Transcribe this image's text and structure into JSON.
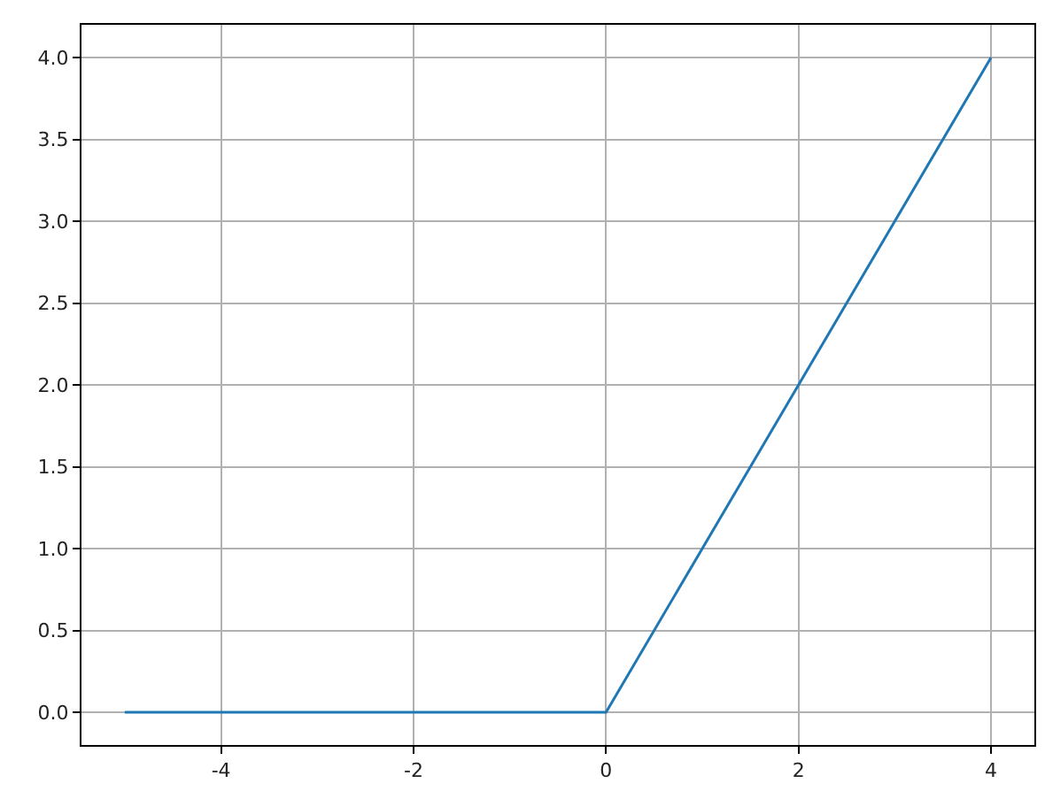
{
  "chart_data": {
    "type": "line",
    "x": [
      -5,
      0,
      4
    ],
    "series": [
      {
        "color": "#1f77b4",
        "values": [
          0,
          0,
          4
        ]
      }
    ],
    "xlim": [
      -5.45,
      4.45
    ],
    "xticks": [
      -4,
      -2,
      0,
      2,
      4
    ],
    "ylim": [
      -0.2,
      4.2
    ],
    "yticks": [
      {
        "value": 0,
        "label": "0.0"
      },
      {
        "value": 0.5,
        "label": "0.5"
      },
      {
        "value": 1,
        "label": "1.0"
      },
      {
        "value": 1.5,
        "label": "1.5"
      },
      {
        "value": 2,
        "label": "2.0"
      },
      {
        "value": 2.5,
        "label": "2.5"
      },
      {
        "value": 3,
        "label": "3.0"
      },
      {
        "value": 3.5,
        "label": "3.5"
      },
      {
        "value": 4,
        "label": "4.0"
      }
    ],
    "grid": true
  }
}
